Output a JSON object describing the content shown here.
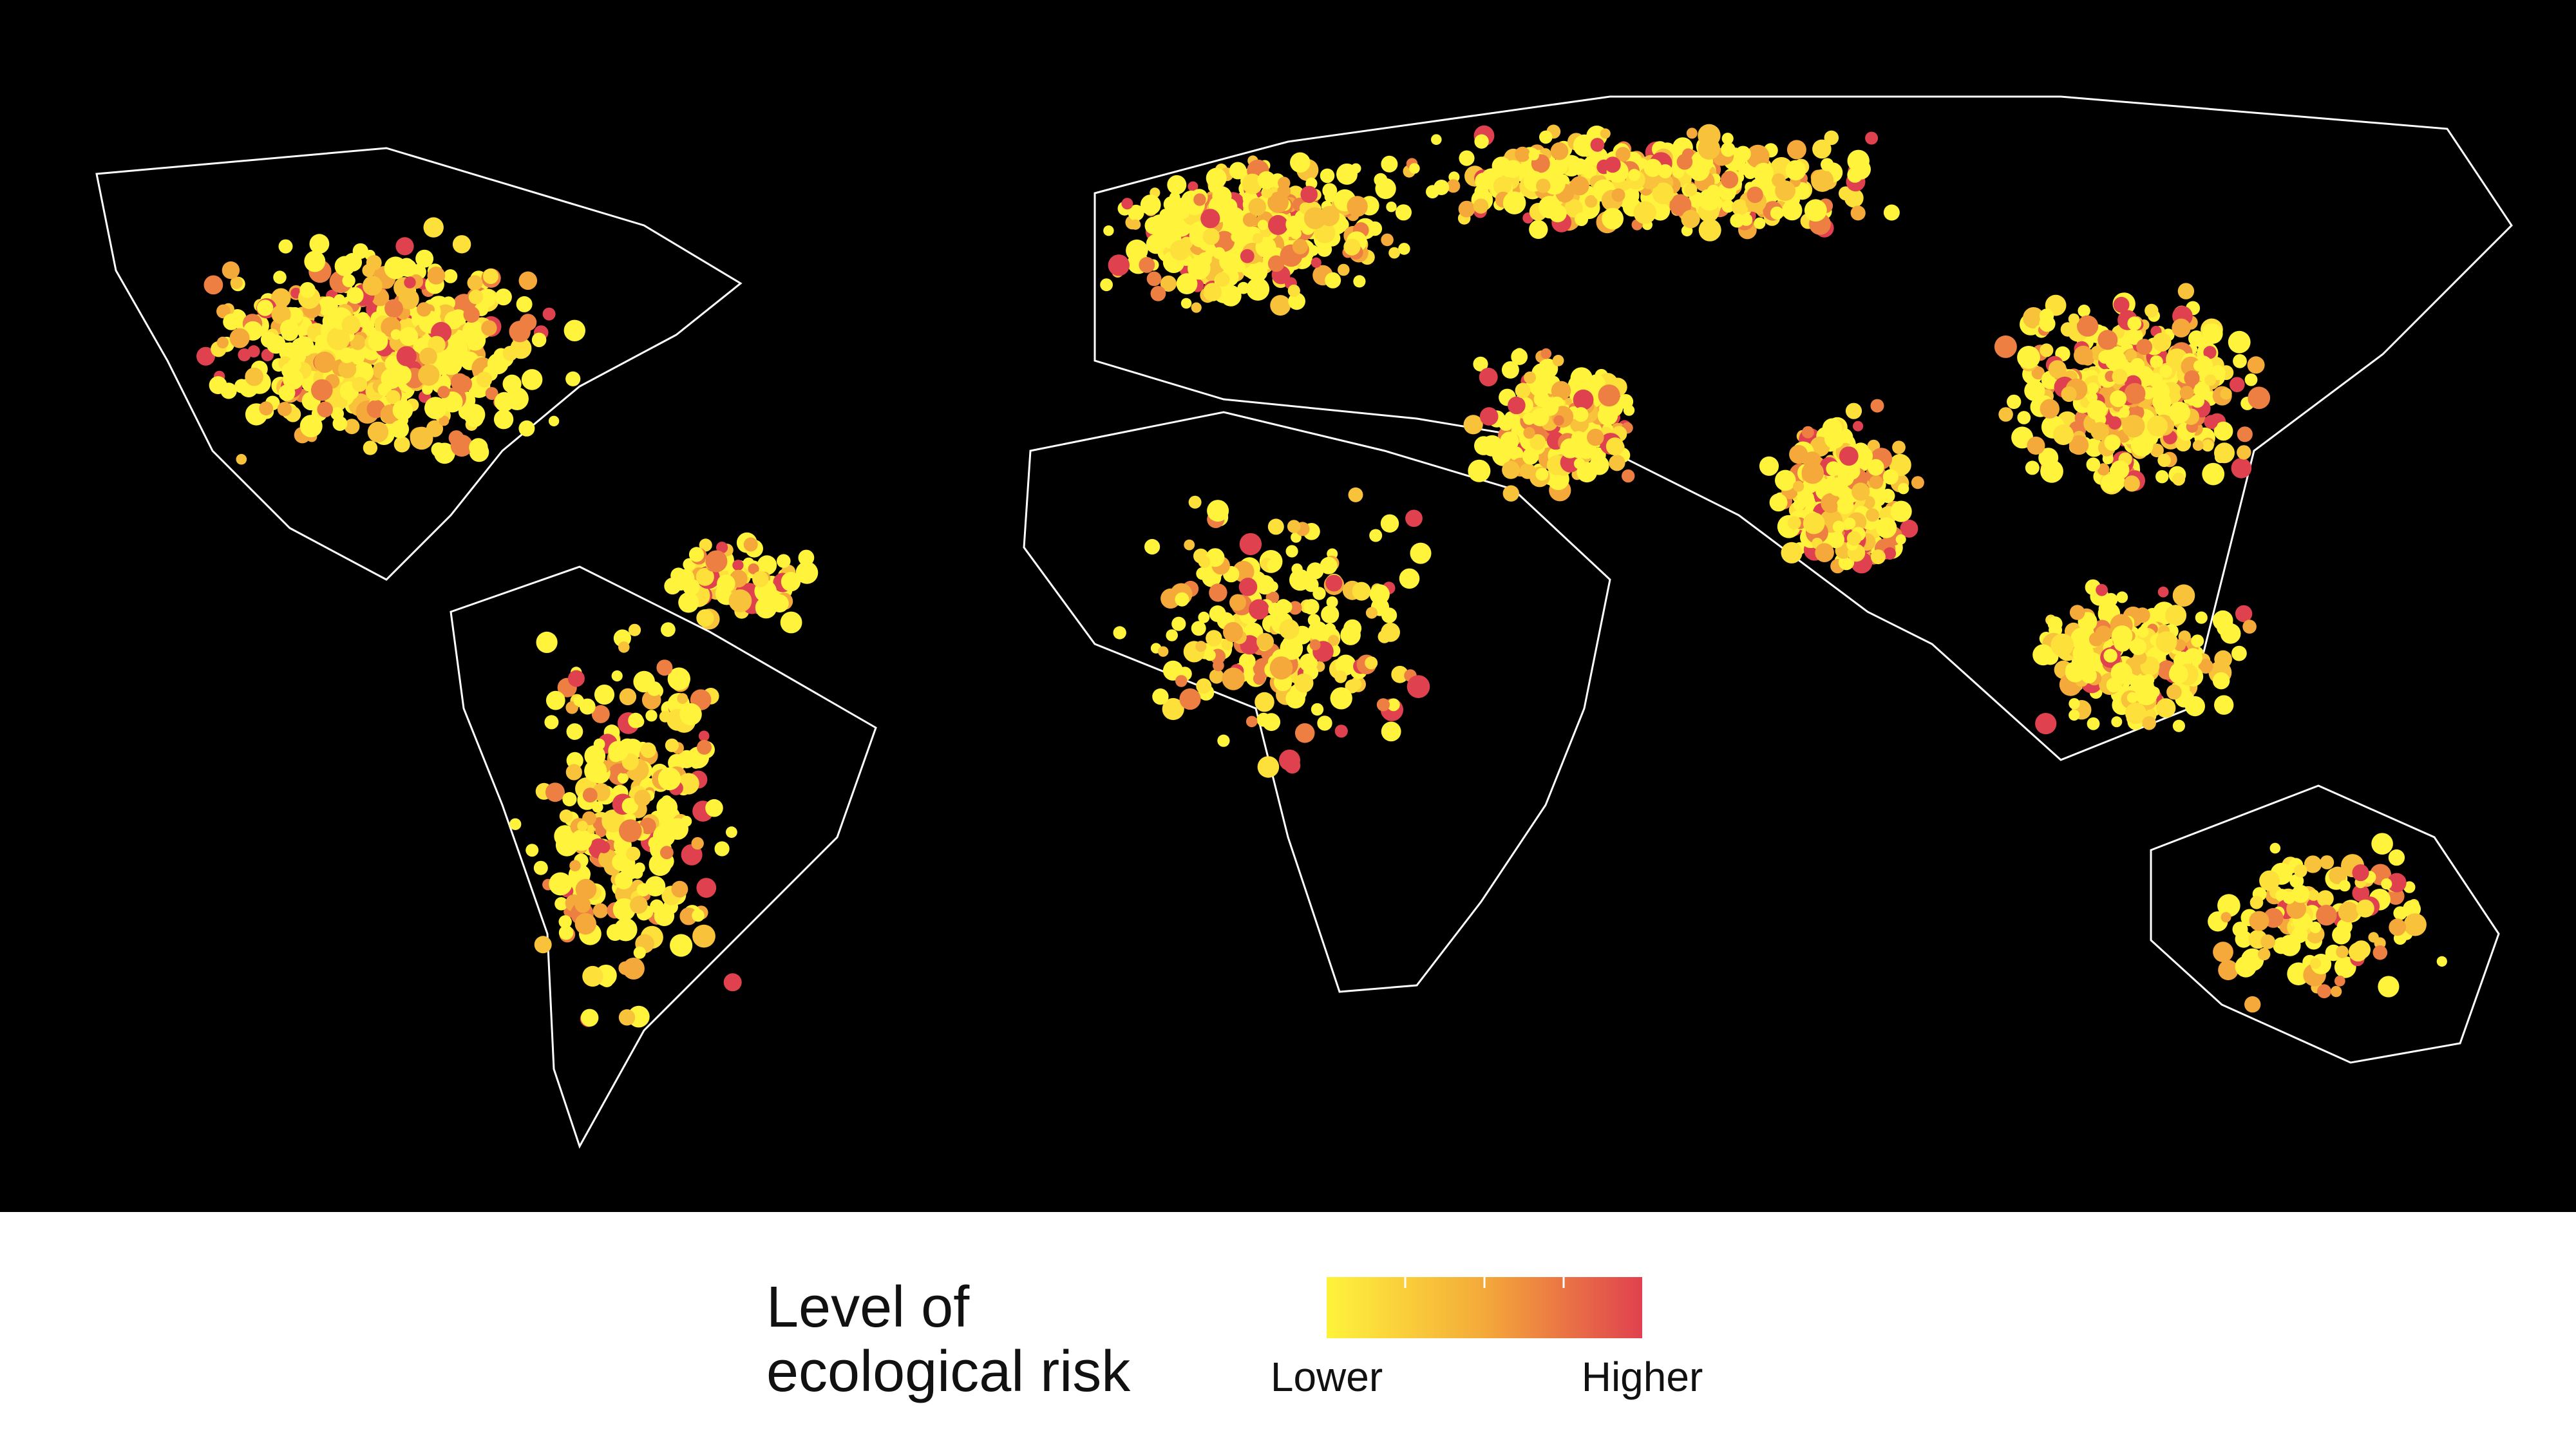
{
  "legend": {
    "title": [
      "Level of",
      "ecological risk"
    ],
    "low_label": "Lower",
    "high_label": "Higher"
  }
}
